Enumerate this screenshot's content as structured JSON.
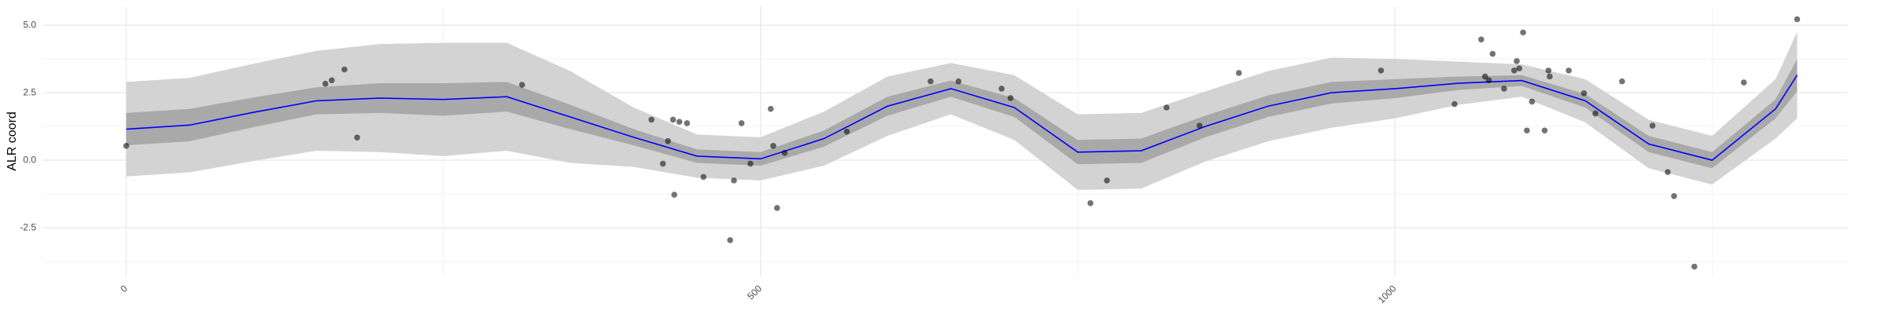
{
  "chart_data": {
    "type": "line",
    "y_label": "ALR coord",
    "xlim": [
      -66,
      1357
    ],
    "ylim": [
      -4.3,
      5.7
    ],
    "xticks": [
      0,
      500,
      1000
    ],
    "yticks": [
      {
        "value": -2.5,
        "label": "-2.5"
      },
      {
        "value": 0,
        "label": "0.0"
      },
      {
        "value": 2.5,
        "label": "2.5"
      },
      {
        "value": 5,
        "label": "5.0"
      }
    ],
    "minor_xgrid": [
      250,
      750,
      1250
    ],
    "minor_ygrid": [
      -3.75,
      -1.25,
      1.25,
      3.75
    ],
    "grid": true,
    "x": [
      0,
      50,
      100,
      150,
      200,
      250,
      300,
      350,
      400,
      450,
      500,
      550,
      600,
      650,
      700,
      750,
      800,
      850,
      900,
      950,
      1000,
      1050,
      1100,
      1150,
      1200,
      1250,
      1300,
      1317
    ],
    "bands": [
      {
        "color": "#d3d3d3",
        "lower": [
          -0.6,
          -0.45,
          -0.03,
          0.35,
          0.3,
          0.15,
          0.35,
          -0.1,
          -0.25,
          -0.65,
          -0.75,
          -0.2,
          0.9,
          1.7,
          0.75,
          -1.1,
          -1.05,
          -0.06,
          0.7,
          1.2,
          1.55,
          2.05,
          2.35,
          1.4,
          -0.3,
          -0.9,
          0.8,
          1.55
        ],
        "upper": [
          2.9,
          3.05,
          3.57,
          4.05,
          4.3,
          4.35,
          4.35,
          3.3,
          1.95,
          0.95,
          0.85,
          1.8,
          3.1,
          3.6,
          3.15,
          1.7,
          1.75,
          2.54,
          3.3,
          3.8,
          3.75,
          3.65,
          3.55,
          3.0,
          1.5,
          0.9,
          3.0,
          4.75
        ]
      },
      {
        "color": "#a9a9a9",
        "lower": [
          0.55,
          0.7,
          1.22,
          1.7,
          1.75,
          1.65,
          1.8,
          1.15,
          0.55,
          -0.1,
          -0.2,
          0.5,
          1.65,
          2.35,
          1.6,
          -0.15,
          -0.1,
          0.84,
          1.6,
          2.1,
          2.3,
          2.6,
          2.75,
          1.95,
          0.3,
          -0.3,
          1.55,
          2.55
        ],
        "upper": [
          1.75,
          1.9,
          2.32,
          2.7,
          2.85,
          2.85,
          2.9,
          2.05,
          1.15,
          0.4,
          0.3,
          1.1,
          2.35,
          2.95,
          2.3,
          0.75,
          0.8,
          1.64,
          2.4,
          2.9,
          3.0,
          3.1,
          3.15,
          2.45,
          0.9,
          0.3,
          2.25,
          3.75
        ]
      }
    ],
    "series": [
      {
        "color": "#0000ff",
        "values": [
          1.15,
          1.3,
          1.77,
          2.2,
          2.3,
          2.25,
          2.35,
          1.6,
          0.85,
          0.15,
          0.05,
          0.8,
          2.0,
          2.65,
          1.95,
          0.3,
          0.35,
          1.24,
          2.0,
          2.5,
          2.65,
          2.85,
          2.95,
          2.2,
          0.6,
          0.0,
          1.9,
          3.15
        ]
      }
    ],
    "points": {
      "color": "#000000",
      "x": [
        0,
        157,
        162,
        172,
        182,
        312,
        414,
        423,
        427,
        431,
        432,
        436,
        442,
        455,
        476,
        479,
        485,
        492,
        508,
        510,
        513,
        519,
        568,
        634,
        656,
        690,
        697,
        760,
        773,
        820,
        846,
        877,
        989,
        1047,
        1068,
        1071,
        1074,
        1077,
        1086,
        1094,
        1096,
        1098,
        1101,
        1104,
        1108,
        1118,
        1121,
        1122,
        1137,
        1149,
        1158,
        1179,
        1203,
        1215,
        1220,
        1236,
        1275,
        1317
      ],
      "y": [
        0.53,
        2.83,
        2.96,
        3.36,
        0.84,
        2.79,
        1.5,
        -0.13,
        0.71,
        1.5,
        -1.28,
        1.42,
        1.37,
        -0.62,
        -2.96,
        -0.75,
        1.37,
        -0.13,
        1.9,
        0.53,
        -1.77,
        0.27,
        1.06,
        2.92,
        2.92,
        2.65,
        2.3,
        -1.59,
        -0.75,
        1.95,
        1.28,
        3.23,
        3.32,
        2.08,
        4.47,
        3.1,
        2.96,
        3.94,
        2.65,
        3.32,
        3.67,
        3.4,
        4.73,
        1.1,
        2.17,
        1.1,
        3.32,
        3.1,
        3.32,
        2.48,
        1.73,
        2.92,
        1.28,
        -0.44,
        -1.33,
        -3.94,
        2.88,
        5.22
      ]
    }
  }
}
